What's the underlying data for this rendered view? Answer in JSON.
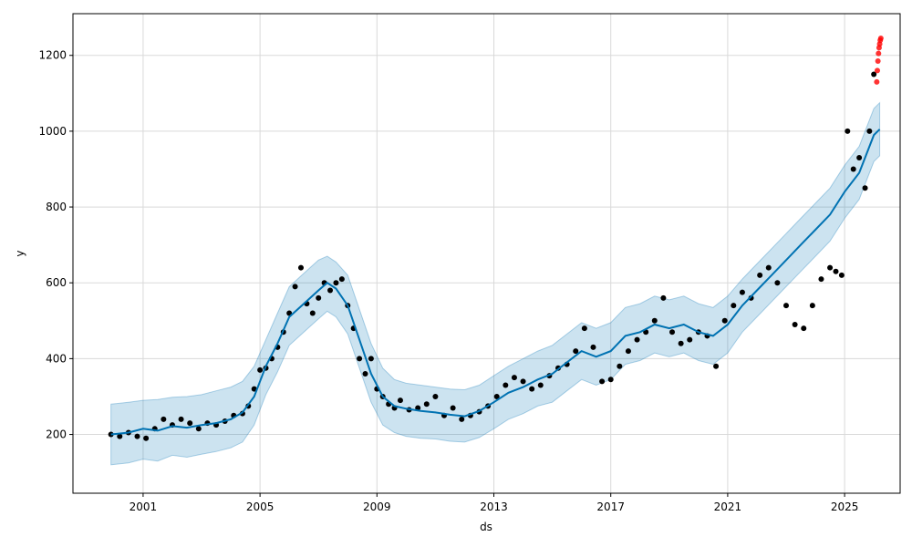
{
  "chart_data": {
    "type": "scatter",
    "xlabel": "ds",
    "ylabel": "y",
    "xlim": [
      1998.6,
      2026.9
    ],
    "ylim": [
      45,
      1310
    ],
    "x_ticks": [
      2001,
      2005,
      2009,
      2013,
      2017,
      2021,
      2025
    ],
    "x_tick_labels": [
      "2001",
      "2005",
      "2009",
      "2013",
      "2017",
      "2021",
      "2025"
    ],
    "y_ticks": [
      200,
      400,
      600,
      800,
      1000,
      1200
    ],
    "y_tick_labels": [
      "200",
      "400",
      "600",
      "800",
      "1000",
      "1200"
    ],
    "grid": true,
    "legend": "none",
    "colors": {
      "observed": "#000000",
      "forecast_line": "#0072B2",
      "uncertainty_band": "#0072B2",
      "highlight": "#ff0000",
      "grid": "#d9d9d9"
    },
    "forecast": {
      "x": [
        1999.9,
        2000.5,
        2001.0,
        2001.5,
        2002.0,
        2002.5,
        2003.0,
        2003.5,
        2004.0,
        2004.4,
        2004.8,
        2005.2,
        2005.6,
        2006.0,
        2006.5,
        2007.0,
        2007.3,
        2007.6,
        2008.0,
        2008.4,
        2008.8,
        2009.2,
        2009.6,
        2010.0,
        2010.5,
        2011.0,
        2011.5,
        2012.0,
        2012.5,
        2013.0,
        2013.5,
        2014.0,
        2014.5,
        2015.0,
        2015.5,
        2016.0,
        2016.5,
        2017.0,
        2017.5,
        2018.0,
        2018.5,
        2019.0,
        2019.5,
        2020.0,
        2020.5,
        2021.0,
        2021.5,
        2022.0,
        2022.5,
        2023.0,
        2023.5,
        2024.0,
        2024.5,
        2025.0,
        2025.5,
        2026.0,
        2026.2
      ],
      "yhat": [
        200,
        205,
        215,
        210,
        222,
        218,
        225,
        230,
        240,
        258,
        300,
        380,
        440,
        510,
        545,
        580,
        600,
        585,
        540,
        450,
        360,
        300,
        275,
        268,
        262,
        258,
        252,
        248,
        262,
        285,
        310,
        325,
        345,
        360,
        390,
        420,
        405,
        420,
        460,
        470,
        490,
        480,
        490,
        470,
        460,
        490,
        540,
        580,
        620,
        660,
        700,
        740,
        780,
        840,
        890,
        990,
        1005
      ]
    },
    "band": {
      "x": [
        1999.9,
        2000.5,
        2001.0,
        2001.5,
        2002.0,
        2002.5,
        2003.0,
        2003.5,
        2004.0,
        2004.4,
        2004.8,
        2005.2,
        2005.6,
        2006.0,
        2006.5,
        2007.0,
        2007.3,
        2007.6,
        2008.0,
        2008.4,
        2008.8,
        2009.2,
        2009.6,
        2010.0,
        2010.5,
        2011.0,
        2011.5,
        2012.0,
        2012.5,
        2013.0,
        2013.5,
        2014.0,
        2014.5,
        2015.0,
        2015.5,
        2016.0,
        2016.5,
        2017.0,
        2017.5,
        2018.0,
        2018.5,
        2019.0,
        2019.5,
        2020.0,
        2020.5,
        2021.0,
        2021.5,
        2022.0,
        2022.5,
        2023.0,
        2023.5,
        2024.0,
        2024.5,
        2025.0,
        2025.5,
        2026.0,
        2026.2
      ],
      "upper": [
        280,
        285,
        290,
        292,
        298,
        300,
        305,
        315,
        325,
        340,
        380,
        450,
        520,
        590,
        625,
        660,
        670,
        655,
        620,
        530,
        440,
        375,
        345,
        335,
        330,
        325,
        320,
        318,
        330,
        355,
        380,
        400,
        420,
        435,
        465,
        495,
        480,
        495,
        535,
        545,
        565,
        555,
        565,
        545,
        535,
        565,
        610,
        650,
        690,
        730,
        770,
        810,
        850,
        910,
        960,
        1060,
        1075
      ],
      "lower": [
        120,
        125,
        135,
        130,
        145,
        140,
        148,
        155,
        165,
        180,
        225,
        305,
        365,
        435,
        470,
        505,
        525,
        510,
        465,
        375,
        285,
        225,
        205,
        195,
        190,
        188,
        182,
        180,
        192,
        215,
        240,
        255,
        275,
        285,
        315,
        345,
        330,
        345,
        385,
        395,
        415,
        405,
        415,
        395,
        385,
        415,
        470,
        510,
        550,
        590,
        630,
        670,
        710,
        770,
        820,
        920,
        935
      ]
    },
    "observed": {
      "x": [
        1999.9,
        2000.2,
        2000.5,
        2000.8,
        2001.1,
        2001.4,
        2001.7,
        2002.0,
        2002.3,
        2002.6,
        2002.9,
        2003.2,
        2003.5,
        2003.8,
        2004.1,
        2004.4,
        2004.6,
        2004.8,
        2005.0,
        2005.2,
        2005.4,
        2005.6,
        2005.8,
        2006.0,
        2006.2,
        2006.4,
        2006.6,
        2006.8,
        2007.0,
        2007.2,
        2007.4,
        2007.6,
        2007.8,
        2008.0,
        2008.2,
        2008.4,
        2008.6,
        2008.8,
        2009.0,
        2009.2,
        2009.4,
        2009.6,
        2009.8,
        2010.1,
        2010.4,
        2010.7,
        2011.0,
        2011.3,
        2011.6,
        2011.9,
        2012.2,
        2012.5,
        2012.8,
        2013.1,
        2013.4,
        2013.7,
        2014.0,
        2014.3,
        2014.6,
        2014.9,
        2015.2,
        2015.5,
        2015.8,
        2016.1,
        2016.4,
        2016.7,
        2017.0,
        2017.3,
        2017.6,
        2017.9,
        2018.2,
        2018.5,
        2018.8,
        2019.1,
        2019.4,
        2019.7,
        2020.0,
        2020.3,
        2020.6,
        2020.9,
        2021.2,
        2021.5,
        2021.8,
        2022.1,
        2022.4,
        2022.7,
        2023.0,
        2023.3,
        2023.6,
        2023.9,
        2024.2,
        2024.5,
        2024.7,
        2024.9,
        2025.1,
        2025.3,
        2025.5,
        2025.7,
        2025.85,
        2026.0
      ],
      "y": [
        200,
        195,
        205,
        195,
        190,
        215,
        240,
        225,
        240,
        230,
        215,
        230,
        225,
        235,
        250,
        255,
        275,
        320,
        370,
        375,
        400,
        430,
        470,
        520,
        590,
        640,
        545,
        520,
        560,
        600,
        580,
        600,
        610,
        540,
        480,
        400,
        360,
        400,
        320,
        300,
        280,
        270,
        290,
        265,
        270,
        280,
        300,
        250,
        270,
        240,
        250,
        260,
        275,
        300,
        330,
        350,
        340,
        320,
        330,
        355,
        375,
        385,
        420,
        480,
        430,
        340,
        345,
        380,
        420,
        450,
        470,
        500,
        560,
        470,
        440,
        450,
        470,
        460,
        380,
        500,
        540,
        575,
        560,
        620,
        640,
        600,
        540,
        490,
        480,
        540,
        610,
        640,
        630,
        620,
        1000,
        900,
        930,
        850,
        1000,
        1150
      ]
    },
    "highlight": {
      "x": [
        2026.1,
        2026.12,
        2026.14,
        2026.16,
        2026.18,
        2026.2,
        2026.22,
        2026.24
      ],
      "y": [
        1130,
        1160,
        1185,
        1205,
        1220,
        1230,
        1240,
        1245
      ]
    }
  }
}
